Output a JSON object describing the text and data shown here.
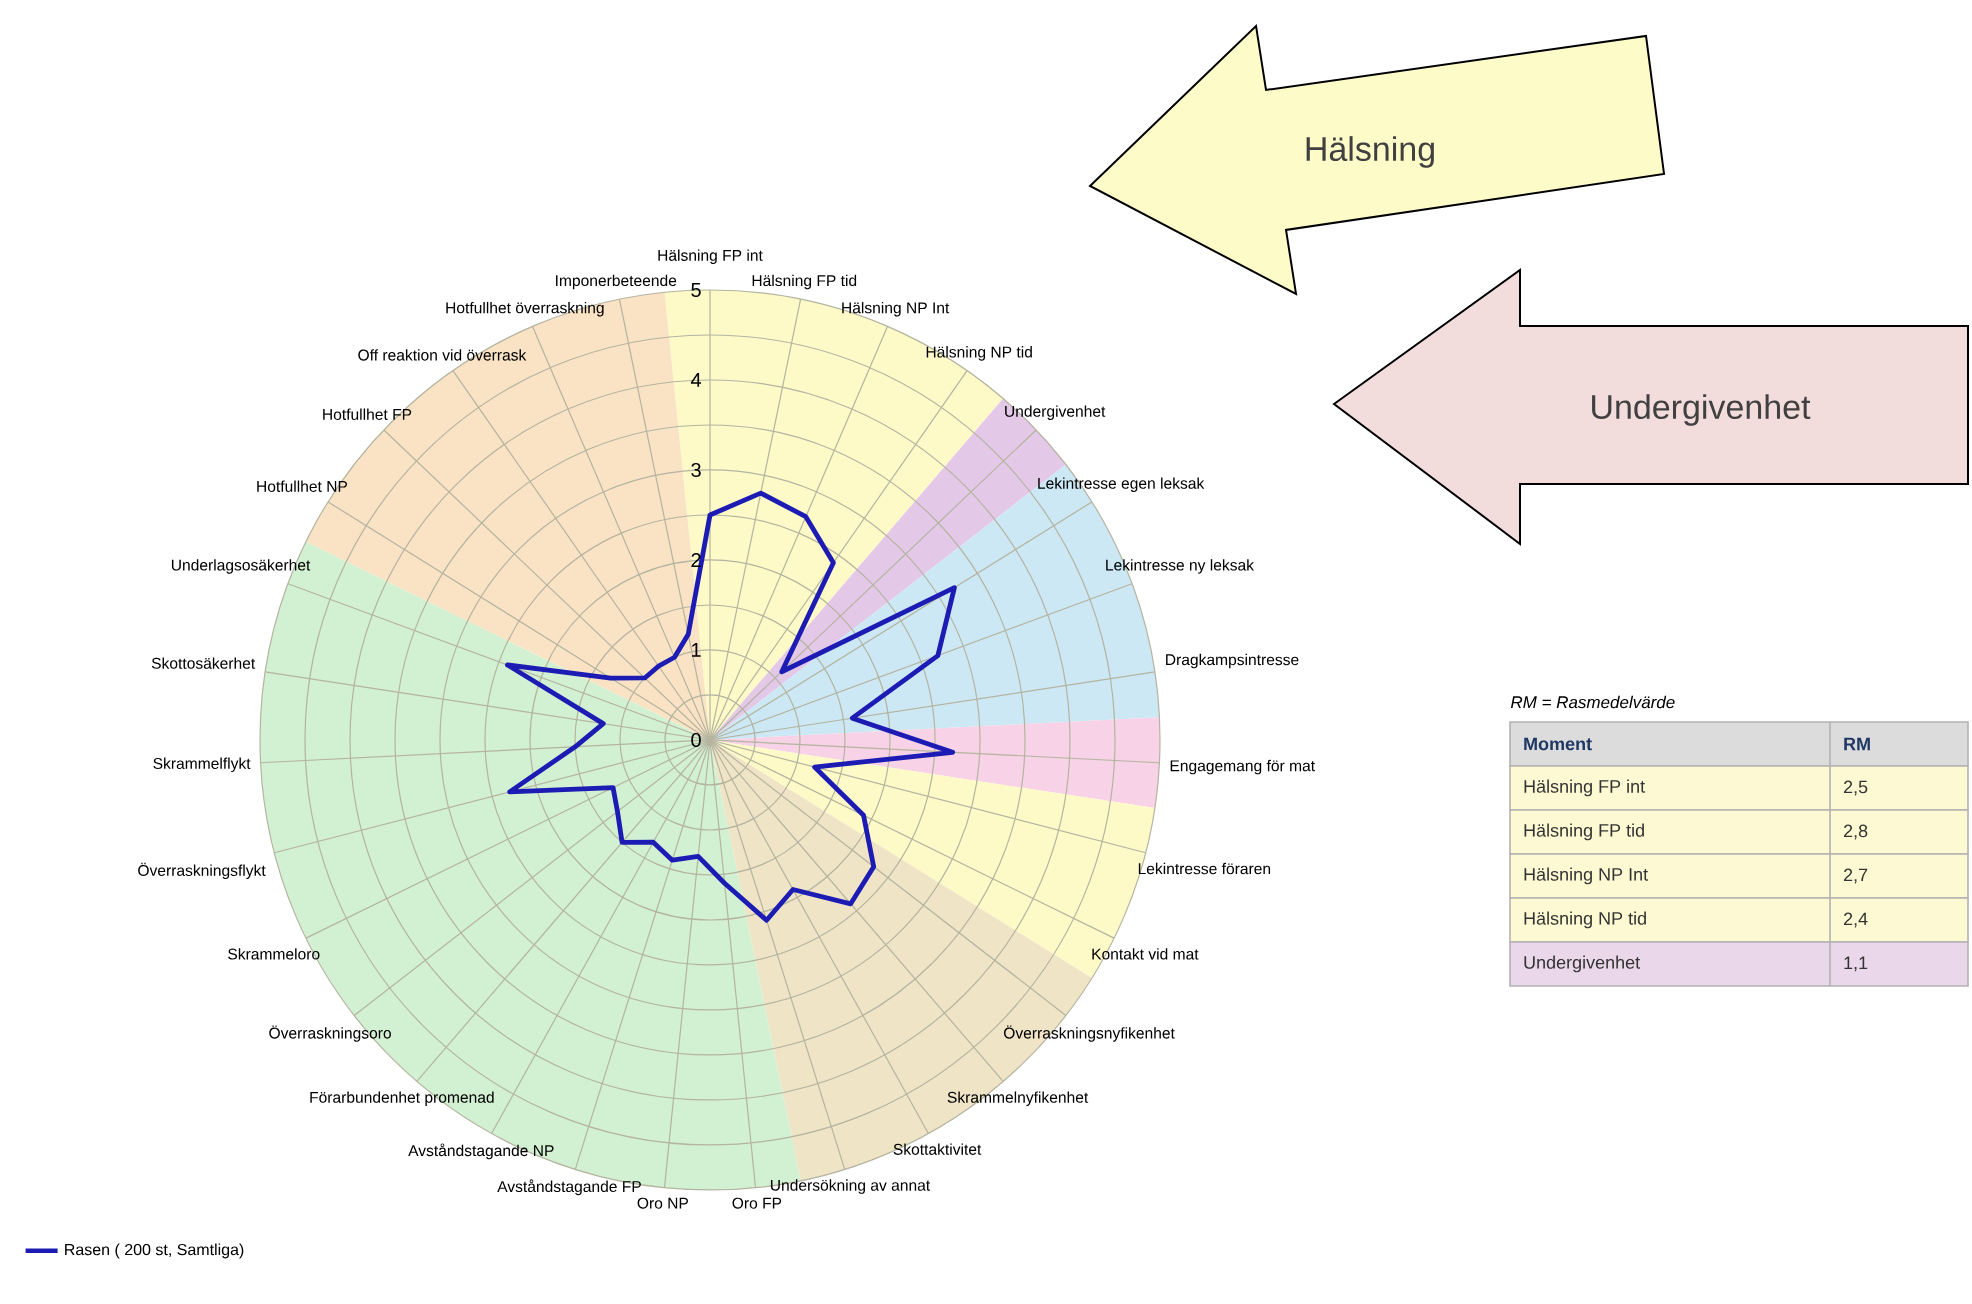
{
  "chart_data": {
    "type": "radar",
    "categories": [
      "Hälsning FP int",
      "Hälsning FP tid",
      "Hälsning NP Int",
      "Hälsning NP tid",
      "Undergivenhet",
      "Lekintresse egen leksak",
      "Lekintresse ny leksak",
      "Dragkampsintresse",
      "Engagemang för mat",
      "Lekintresse föraren",
      "Kontakt vid mat",
      "Överraskningsnyfikenhet",
      "Skrammelnyfikenhet",
      "Skottaktivitet",
      "Undersökning av annat",
      "Oro FP",
      "Oro NP",
      "Avståndstagande FP",
      "Avståndstagande NP",
      "Förarbundenhet promenad",
      "Överraskningsoro",
      "Skrammeloro",
      "Överraskningsflykt",
      "Skrammelflykt",
      "Skottosäkerhet",
      "Underlagsosäkerhet",
      "Hotfullhet NP",
      "Hotfullhet FP",
      "Off reaktion vid överrask",
      "Hotfullhet överraskning",
      "Imponerbeteende"
    ],
    "series": [
      {
        "name": "Rasen ( 200 st, Samtliga)",
        "color": "#1c1cb4",
        "values": [
          2.5,
          2.8,
          2.7,
          2.4,
          1.1,
          3.2,
          2.7,
          1.6,
          2.7,
          1.2,
          1.9,
          2.3,
          2.4,
          1.9,
          2.1,
          1.6,
          1.3,
          1.4,
          1.3,
          1.5,
          1.3,
          1.2,
          2.3,
          1.5,
          1.2,
          2.4,
          1.3,
          1.0,
          1.0,
          1.0,
          1.2
        ]
      }
    ],
    "ylim": [
      0,
      5
    ],
    "yticks": [
      0,
      1,
      2,
      3,
      4,
      5
    ],
    "grid": true,
    "legend": "bottom left",
    "annotations": [
      "Hälsning",
      "Undergivenhet",
      "RM = Rasmedelvärde",
      "Moment",
      "RM",
      "Hälsning FP int",
      "2,5",
      "Hälsning FP tid",
      "2,8",
      "Hälsning NP Int",
      "2,7",
      "Hälsning NP tid",
      "2,4",
      "Undergivenhet",
      "1,1"
    ]
  }
}
